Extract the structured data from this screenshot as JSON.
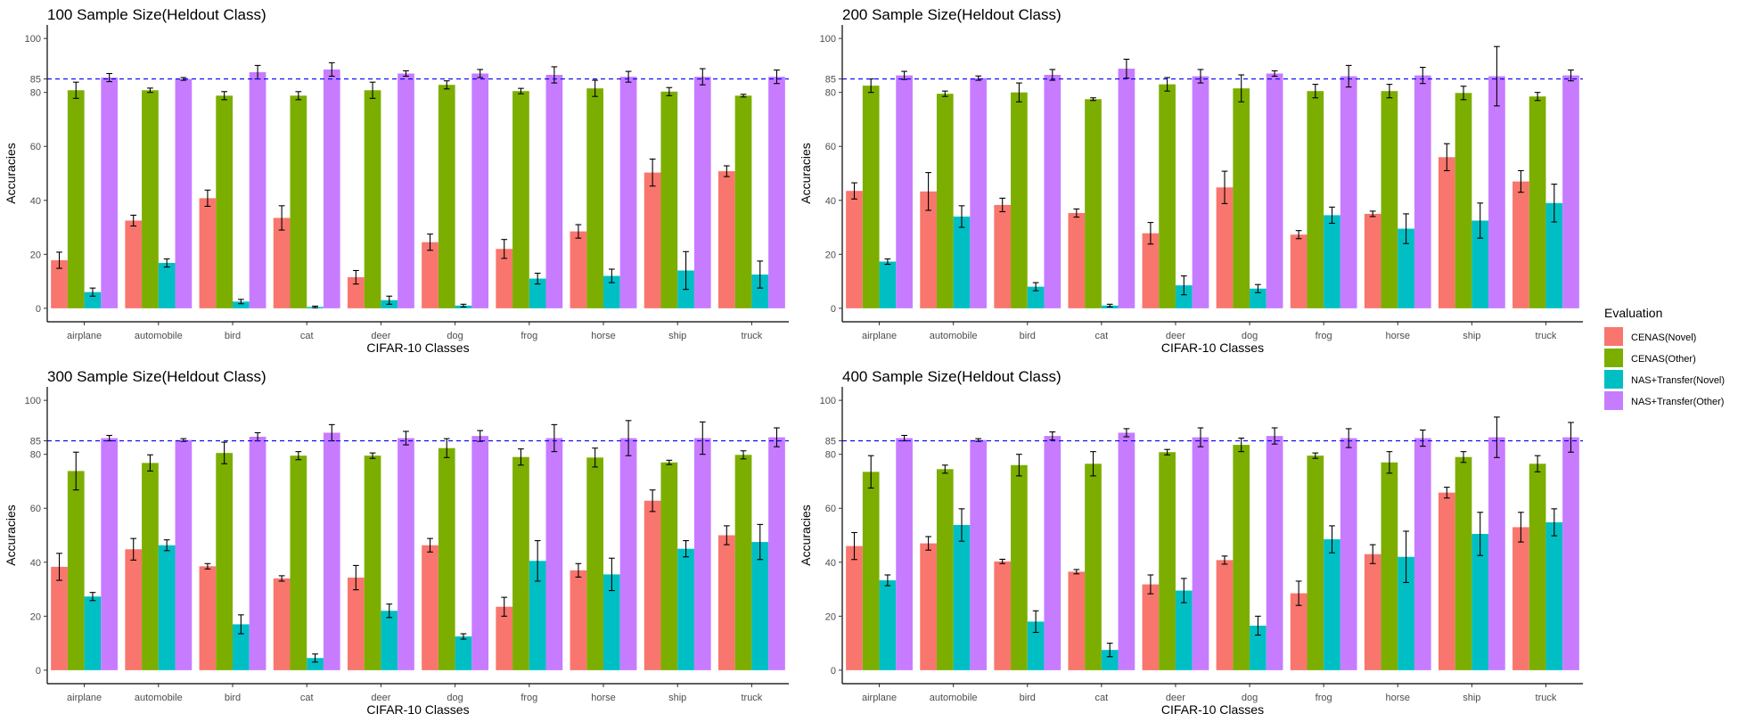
{
  "chart_data": [
    {
      "type": "bar",
      "title": "100 Sample Size(Heldout Class)",
      "xlabel": "CIFAR-10 Classes",
      "ylabel": "Accuracies",
      "ylim": [
        -5,
        105
      ],
      "yticks": [
        0,
        20,
        40,
        60,
        80,
        85,
        100
      ],
      "hline": 85,
      "categories": [
        "airplane",
        "automobile",
        "bird",
        "cat",
        "deer",
        "dog",
        "frog",
        "horse",
        "ship",
        "truck"
      ],
      "series": [
        {
          "name": "CENAS(Novel)",
          "values": [
            17.8,
            32.5,
            40.8,
            33.5,
            11.5,
            24.5,
            22.0,
            28.5,
            50.3,
            50.8
          ],
          "errors": [
            3.0,
            2.0,
            3.0,
            4.5,
            2.5,
            3.0,
            3.5,
            2.5,
            5.0,
            2.0
          ]
        },
        {
          "name": "CENAS(Other)",
          "values": [
            80.8,
            80.8,
            78.8,
            78.8,
            80.8,
            82.8,
            80.5,
            81.5,
            80.3,
            78.8
          ],
          "errors": [
            3.0,
            0.8,
            1.5,
            1.5,
            3.0,
            1.5,
            1.0,
            3.0,
            1.5,
            0.5
          ]
        },
        {
          "name": "NAS+Transfer(Novel)",
          "values": [
            6.0,
            16.8,
            2.5,
            0.5,
            3.0,
            1.0,
            11.0,
            12.0,
            14.0,
            12.5
          ],
          "errors": [
            1.5,
            1.5,
            0.8,
            0.3,
            1.5,
            0.5,
            2.0,
            2.5,
            7.0,
            5.0
          ]
        },
        {
          "name": "NAS+Transfer(Other)",
          "values": [
            85.5,
            85.0,
            87.5,
            88.5,
            87.0,
            87.0,
            86.5,
            85.8,
            85.8,
            85.8
          ],
          "errors": [
            1.5,
            0.5,
            2.5,
            2.5,
            1.0,
            1.5,
            3.0,
            2.0,
            3.0,
            2.5
          ]
        }
      ]
    },
    {
      "type": "bar",
      "title": "200 Sample Size(Heldout Class)",
      "xlabel": "CIFAR-10 Classes",
      "ylabel": "Accuracies",
      "ylim": [
        -5,
        105
      ],
      "yticks": [
        0,
        20,
        40,
        60,
        80,
        85,
        100
      ],
      "hline": 85,
      "categories": [
        "airplane",
        "automobile",
        "bird",
        "cat",
        "deer",
        "dog",
        "frog",
        "horse",
        "ship",
        "truck"
      ],
      "series": [
        {
          "name": "CENAS(Novel)",
          "values": [
            43.5,
            43.3,
            38.3,
            35.3,
            27.8,
            44.8,
            27.3,
            35.0,
            56.0,
            47.0
          ],
          "errors": [
            3.0,
            7.0,
            2.5,
            1.5,
            4.0,
            6.0,
            1.5,
            1.0,
            5.0,
            4.0
          ]
        },
        {
          "name": "CENAS(Other)",
          "values": [
            82.5,
            79.5,
            80.0,
            77.5,
            83.0,
            81.5,
            80.5,
            80.5,
            79.8,
            78.5
          ],
          "errors": [
            2.5,
            1.0,
            3.5,
            0.5,
            2.5,
            5.0,
            2.5,
            2.5,
            2.5,
            1.5
          ]
        },
        {
          "name": "NAS+Transfer(Novel)",
          "values": [
            17.3,
            34.0,
            8.0,
            1.0,
            8.5,
            7.3,
            34.5,
            29.5,
            32.5,
            39.0
          ],
          "errors": [
            1.0,
            4.0,
            1.5,
            0.5,
            3.5,
            1.5,
            3.0,
            5.5,
            6.5,
            7.0
          ]
        },
        {
          "name": "NAS+Transfer(Other)",
          "values": [
            86.3,
            85.3,
            86.5,
            88.8,
            86.0,
            87.0,
            86.0,
            86.3,
            86.0,
            86.3
          ],
          "errors": [
            1.5,
            0.8,
            2.0,
            3.5,
            2.5,
            1.0,
            4.0,
            3.0,
            11.0,
            2.0
          ]
        }
      ]
    },
    {
      "type": "bar",
      "title": "300 Sample Size(Heldout Class)",
      "xlabel": "CIFAR-10 Classes",
      "ylabel": "Accuracies",
      "ylim": [
        -5,
        105
      ],
      "yticks": [
        0,
        20,
        40,
        60,
        80,
        85,
        100
      ],
      "hline": 85,
      "categories": [
        "airplane",
        "automobile",
        "bird",
        "cat",
        "deer",
        "dog",
        "frog",
        "horse",
        "ship",
        "truck"
      ],
      "series": [
        {
          "name": "CENAS(Novel)",
          "values": [
            38.3,
            44.8,
            38.5,
            34.0,
            34.3,
            46.3,
            23.5,
            37.0,
            62.8,
            50.0
          ],
          "errors": [
            5.0,
            4.0,
            1.0,
            1.0,
            4.5,
            2.5,
            3.5,
            2.5,
            4.0,
            3.5
          ]
        },
        {
          "name": "CENAS(Other)",
          "values": [
            73.8,
            76.8,
            80.5,
            79.5,
            79.5,
            82.3,
            79.0,
            78.8,
            77.0,
            79.8
          ],
          "errors": [
            7.0,
            3.0,
            4.0,
            1.5,
            1.0,
            3.5,
            3.0,
            3.5,
            0.8,
            1.5
          ]
        },
        {
          "name": "NAS+Transfer(Novel)",
          "values": [
            27.3,
            46.3,
            17.0,
            4.5,
            22.0,
            12.5,
            40.5,
            35.5,
            45.0,
            47.5
          ],
          "errors": [
            1.5,
            2.0,
            3.5,
            1.5,
            2.5,
            1.0,
            7.5,
            6.0,
            3.0,
            6.5
          ]
        },
        {
          "name": "NAS+Transfer(Other)",
          "values": [
            86.0,
            85.3,
            86.5,
            88.0,
            86.0,
            86.8,
            86.0,
            86.0,
            86.0,
            86.3
          ],
          "errors": [
            1.0,
            0.5,
            1.5,
            3.0,
            2.5,
            2.0,
            5.0,
            6.5,
            6.0,
            3.5
          ]
        }
      ]
    },
    {
      "type": "bar",
      "title": "400 Sample Size(Heldout Class)",
      "xlabel": "CIFAR-10 Classes",
      "ylabel": "Accuracies",
      "ylim": [
        -5,
        105
      ],
      "yticks": [
        0,
        20,
        40,
        60,
        80,
        85,
        100
      ],
      "hline": 85,
      "categories": [
        "airplane",
        "automobile",
        "bird",
        "cat",
        "deer",
        "dog",
        "frog",
        "horse",
        "ship",
        "truck"
      ],
      "series": [
        {
          "name": "CENAS(Novel)",
          "values": [
            46.0,
            47.0,
            40.3,
            36.5,
            31.8,
            40.8,
            28.5,
            43.0,
            65.8,
            53.0
          ],
          "errors": [
            5.0,
            2.5,
            0.8,
            0.8,
            3.5,
            1.5,
            4.5,
            3.5,
            2.0,
            5.5
          ]
        },
        {
          "name": "CENAS(Other)",
          "values": [
            73.5,
            74.5,
            76.0,
            76.5,
            80.8,
            83.5,
            79.5,
            77.0,
            79.0,
            76.5
          ],
          "errors": [
            6.0,
            1.5,
            4.0,
            4.5,
            1.0,
            2.5,
            1.0,
            4.0,
            2.0,
            3.0
          ]
        },
        {
          "name": "NAS+Transfer(Novel)",
          "values": [
            33.3,
            53.8,
            18.0,
            7.5,
            29.5,
            16.5,
            48.5,
            42.0,
            50.5,
            54.8
          ],
          "errors": [
            2.0,
            6.0,
            4.0,
            2.5,
            4.5,
            3.5,
            5.0,
            9.5,
            8.0,
            5.0
          ]
        },
        {
          "name": "NAS+Transfer(Other)",
          "values": [
            86.0,
            85.3,
            86.8,
            88.0,
            86.3,
            86.8,
            86.0,
            86.0,
            86.3,
            86.3
          ],
          "errors": [
            1.0,
            0.5,
            1.5,
            1.5,
            3.5,
            3.0,
            3.5,
            3.0,
            7.5,
            5.5
          ]
        }
      ]
    }
  ],
  "legend": {
    "title": "Evaluation",
    "items": [
      {
        "label": "CENAS(Novel)",
        "color": "#F8766D"
      },
      {
        "label": "CENAS(Other)",
        "color": "#7CAE00"
      },
      {
        "label": "NAS+Transfer(Novel)",
        "color": "#00BFC4"
      },
      {
        "label": "NAS+Transfer(Other)",
        "color": "#C77CFF"
      }
    ]
  },
  "colors": {
    "hline": "#0000FF",
    "axis": "#000000",
    "tick_text": "#4d4d4d"
  }
}
